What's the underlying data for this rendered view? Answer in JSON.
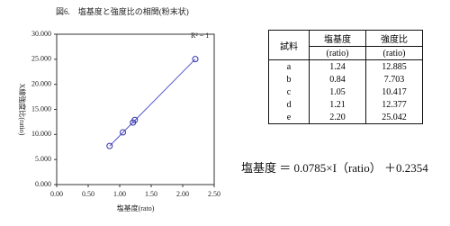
{
  "header": {
    "title": "図6.　塩基度と強度比の相関(粉末状)"
  },
  "chart_data": {
    "type": "scatter",
    "x_label": "塩基度(rato)",
    "y_label": "X線強度比(ratio)",
    "annotation": "R² = 1",
    "x": [
      1.24,
      0.84,
      1.05,
      1.21,
      2.2
    ],
    "series": [
      {
        "name": "強度比",
        "color": "#3333aa",
        "values": [
          12.885,
          7.703,
          10.417,
          12.377,
          25.042
        ]
      }
    ],
    "trend_color": "#5555cc",
    "xlim": [
      0,
      2.5
    ],
    "xticks": [
      {
        "value": 0,
        "label": "0.00"
      },
      {
        "value": 0.5,
        "label": "0.50"
      },
      {
        "value": 1,
        "label": "1.00"
      },
      {
        "value": 1.5,
        "label": "1.50"
      },
      {
        "value": 2,
        "label": "2.00"
      },
      {
        "value": 2.5,
        "label": "2.50"
      }
    ],
    "ylim": [
      0,
      30
    ],
    "yticks": [
      {
        "value": 0,
        "label": "0.000"
      },
      {
        "value": 5,
        "label": "5.000"
      },
      {
        "value": 10,
        "label": "10.000"
      },
      {
        "value": 15,
        "label": "15.000"
      },
      {
        "value": 20,
        "label": "20.000"
      },
      {
        "value": 25,
        "label": "25.000"
      },
      {
        "value": 30,
        "label": "30.000"
      }
    ]
  },
  "table": {
    "header": [
      "試料",
      "塩基度",
      "(ratio)",
      "強度比",
      "(ratio)"
    ],
    "rows": [
      [
        "a",
        "1.24",
        "12.885"
      ],
      [
        "b",
        "0.84",
        "7.703"
      ],
      [
        "c",
        "1.05",
        "10.417"
      ],
      [
        "d",
        "1.21",
        "12.377"
      ],
      [
        "e",
        "2.20",
        "25.042"
      ]
    ]
  },
  "equation": {
    "lhs": "塩基度",
    "eq": "＝",
    "slope": 0.0785,
    "term": "×I（ratio）",
    "plus": "＋",
    "intercept": 0.2354
  }
}
